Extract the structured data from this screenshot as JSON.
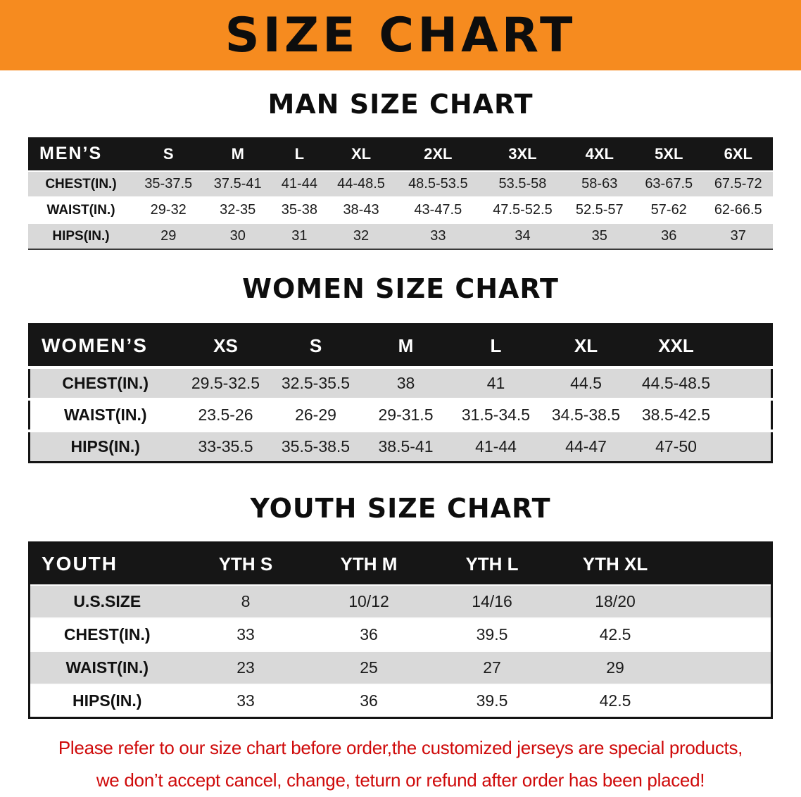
{
  "banner": {
    "title": "SIZE CHART"
  },
  "man": {
    "heading": "MAN SIZE CHART",
    "label": "MEN’S",
    "columns": [
      "S",
      "M",
      "L",
      "XL",
      "2XL",
      "3XL",
      "4XL",
      "5XL",
      "6XL"
    ],
    "rows": [
      {
        "label": "CHEST(IN.)",
        "values": [
          "35-37.5",
          "37.5-41",
          "41-44",
          "44-48.5",
          "48.5-53.5",
          "53.5-58",
          "58-63",
          "63-67.5",
          "67.5-72"
        ]
      },
      {
        "label": "WAIST(IN.)",
        "values": [
          "29-32",
          "32-35",
          "35-38",
          "38-43",
          "43-47.5",
          "47.5-52.5",
          "52.5-57",
          "57-62",
          "62-66.5"
        ]
      },
      {
        "label": "HIPS(IN.)",
        "values": [
          "29",
          "30",
          "31",
          "32",
          "33",
          "34",
          "35",
          "36",
          "37"
        ]
      }
    ]
  },
  "women": {
    "heading": "WOMEN SIZE CHART",
    "label": "WOMEN’S",
    "columns": [
      "XS",
      "S",
      "M",
      "L",
      "XL",
      "XXL"
    ],
    "rows": [
      {
        "label": "CHEST(IN.)",
        "values": [
          "29.5-32.5",
          "32.5-35.5",
          "38",
          "41",
          "44.5",
          "44.5-48.5"
        ]
      },
      {
        "label": "WAIST(IN.)",
        "values": [
          "23.5-26",
          "26-29",
          "29-31.5",
          "31.5-34.5",
          "34.5-38.5",
          "38.5-42.5"
        ]
      },
      {
        "label": "HIPS(IN.)",
        "values": [
          "33-35.5",
          "35.5-38.5",
          "38.5-41",
          "41-44",
          "44-47",
          "47-50"
        ]
      }
    ]
  },
  "youth": {
    "heading": "YOUTH SIZE CHART",
    "label": "YOUTH",
    "columns": [
      "YTH S",
      "YTH M",
      "YTH L",
      "YTH XL"
    ],
    "rows": [
      {
        "label": "U.S.SIZE",
        "values": [
          "8",
          "10/12",
          "14/16",
          "18/20"
        ]
      },
      {
        "label": "CHEST(IN.)",
        "values": [
          "33",
          "36",
          "39.5",
          "42.5"
        ]
      },
      {
        "label": "WAIST(IN.)",
        "values": [
          "23",
          "25",
          "27",
          "29"
        ]
      },
      {
        "label": "HIPS(IN.)",
        "values": [
          "33",
          "36",
          "39.5",
          "42.5"
        ]
      }
    ]
  },
  "footer": {
    "line1": "Please refer to our size chart before order,the customized jerseys are special products,",
    "line2": "we don’t accept cancel, change, teturn or refund after order has been placed!"
  },
  "colors": {
    "banner_orange": "#f68b1f",
    "header_black": "#161616",
    "row_gray": "#d9d9d9",
    "footer_red": "#cf0a0a"
  }
}
